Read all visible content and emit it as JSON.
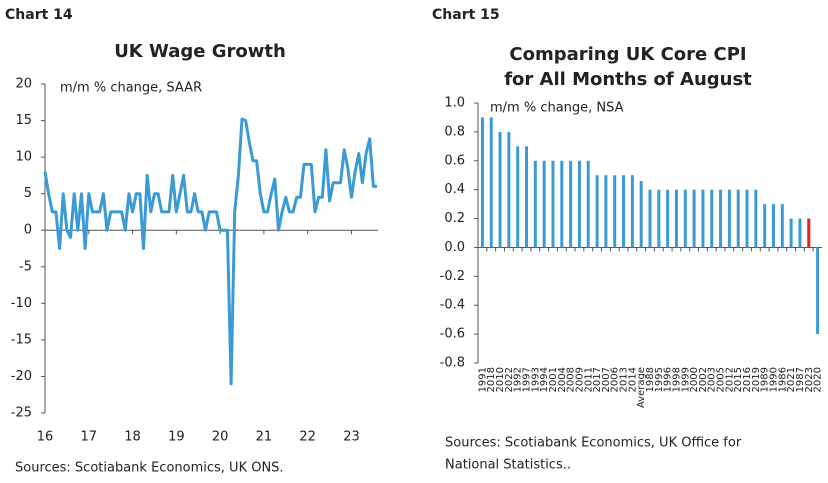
{
  "chart_data": [
    {
      "type": "line",
      "label": "Chart 14",
      "title": [
        "UK Wage Growth"
      ],
      "subtitle": "m/m % change, SAAR",
      "source": [
        "Sources: Scotiabank Economics, UK ONS."
      ],
      "categories": [
        "16",
        null,
        null,
        null,
        null,
        null,
        null,
        null,
        null,
        null,
        null,
        null,
        "17",
        null,
        null,
        null,
        null,
        null,
        null,
        null,
        null,
        null,
        null,
        null,
        "18",
        null,
        null,
        null,
        null,
        null,
        null,
        null,
        null,
        null,
        null,
        null,
        "19",
        null,
        null,
        null,
        null,
        null,
        null,
        null,
        null,
        null,
        null,
        null,
        "20",
        null,
        null,
        null,
        null,
        null,
        null,
        null,
        null,
        null,
        null,
        null,
        "21",
        null,
        null,
        null,
        null,
        null,
        null,
        null,
        null,
        null,
        null,
        null,
        "22",
        null,
        null,
        null,
        null,
        null,
        null,
        null,
        null,
        null,
        null,
        null,
        "23",
        null,
        null,
        null,
        null,
        null,
        null,
        null
      ],
      "series": [
        {
          "color": "#3b9ad6",
          "values": [
            8,
            5,
            2.5,
            2.5,
            -2.5,
            5,
            0,
            -1,
            5,
            0,
            5,
            -2.5,
            5,
            2.5,
            2.5,
            2.5,
            5,
            0,
            2.5,
            2.5,
            2.5,
            2.5,
            0,
            5,
            2.5,
            5,
            5,
            -2.5,
            7.5,
            2.5,
            5,
            5,
            2.5,
            2.5,
            2.5,
            7.5,
            2.5,
            5,
            7.5,
            2.5,
            2.5,
            5,
            2.5,
            2.5,
            0,
            2.5,
            2.5,
            2.5,
            0,
            0,
            0,
            -21,
            2.5,
            7.5,
            15.2,
            15,
            12,
            9.5,
            9.5,
            5,
            2.5,
            2.5,
            5,
            7,
            0,
            2.5,
            4.5,
            2.5,
            2.5,
            4.5,
            4.5,
            9,
            9,
            9,
            2.5,
            4.5,
            4.5,
            11,
            4,
            6.5,
            6.5,
            6.5,
            11,
            8.5,
            4.5,
            8,
            10.5,
            6.5,
            10.5,
            12.5,
            6,
            6
          ]
        }
      ],
      "ylim": [
        -25,
        20
      ],
      "yticks": [
        -25,
        -20,
        -15,
        -10,
        -5,
        0,
        5,
        10,
        15,
        20
      ],
      "grid": false
    },
    {
      "type": "bar",
      "label": "Chart 15",
      "title": [
        "Comparing UK Core CPI",
        "for All Months of August"
      ],
      "subtitle": "m/m % change, NSA",
      "source": [
        "Sources: Scotiabank Economics, UK Office for",
        "National Statistics.."
      ],
      "categories": [
        "1991",
        "2018",
        "2010",
        "2022",
        "1992",
        "1997",
        "1993",
        "1994",
        "2001",
        "2004",
        "2008",
        "2009",
        "2011",
        "2017",
        "2007",
        "2006",
        "2013",
        "2014",
        "Average",
        "1988",
        "1995",
        "1996",
        "1998",
        "1999",
        "2000",
        "2002",
        "2003",
        "2005",
        "2012",
        "2015",
        "2016",
        "2019",
        "1989",
        "1990",
        "1986",
        "2021",
        "1987",
        "2023",
        "2020"
      ],
      "values": [
        0.9,
        0.9,
        0.8,
        0.8,
        0.7,
        0.7,
        0.6,
        0.6,
        0.6,
        0.6,
        0.6,
        0.6,
        0.6,
        0.5,
        0.5,
        0.5,
        0.5,
        0.5,
        0.46,
        0.4,
        0.4,
        0.4,
        0.4,
        0.4,
        0.4,
        0.4,
        0.4,
        0.4,
        0.4,
        0.4,
        0.4,
        0.4,
        0.3,
        0.3,
        0.3,
        0.2,
        0.2,
        0.2,
        -0.6
      ],
      "colors": [
        "#3b9ad6",
        "#3b9ad6",
        "#3b9ad6",
        "#3b9ad6",
        "#3b9ad6",
        "#3b9ad6",
        "#3b9ad6",
        "#3b9ad6",
        "#3b9ad6",
        "#3b9ad6",
        "#3b9ad6",
        "#3b9ad6",
        "#3b9ad6",
        "#3b9ad6",
        "#3b9ad6",
        "#3b9ad6",
        "#3b9ad6",
        "#3b9ad6",
        "#3b9ad6",
        "#3b9ad6",
        "#3b9ad6",
        "#3b9ad6",
        "#3b9ad6",
        "#3b9ad6",
        "#3b9ad6",
        "#3b9ad6",
        "#3b9ad6",
        "#3b9ad6",
        "#3b9ad6",
        "#3b9ad6",
        "#3b9ad6",
        "#3b9ad6",
        "#3b9ad6",
        "#3b9ad6",
        "#3b9ad6",
        "#3b9ad6",
        "#3b9ad6",
        "#e8211c",
        "#3b9ad6"
      ],
      "ylim": [
        -0.8,
        1
      ],
      "yticks": [
        -0.8,
        -0.6,
        -0.4,
        -0.2,
        {
          "value": 0,
          "label": "0.0"
        },
        0.2,
        0.4,
        0.6,
        0.8,
        {
          "value": 1,
          "label": "1.0"
        }
      ],
      "grid": false
    }
  ]
}
